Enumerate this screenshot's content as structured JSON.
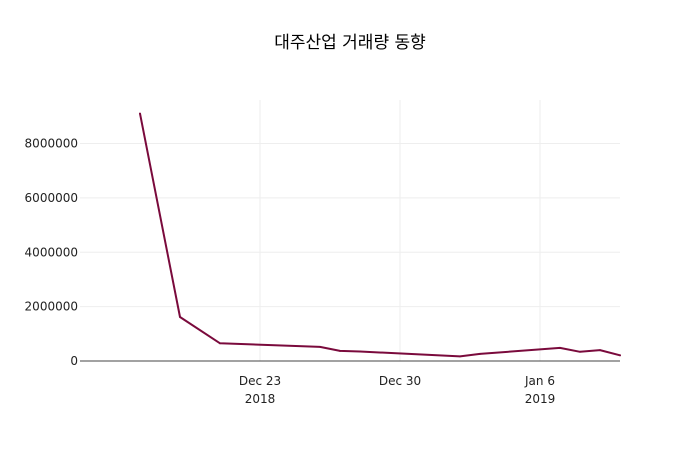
{
  "chart_data": {
    "type": "line",
    "title": "대주산업 거래량 동향",
    "xlabel": "",
    "ylabel": "",
    "colors": {
      "line": "#7a0a3c",
      "grid": "#eeeeee",
      "axis": "#444444",
      "text": "#222222"
    },
    "grid": true,
    "xlim": [
      "2018-12-14",
      "2019-01-10"
    ],
    "ylim": [
      0,
      9600000
    ],
    "x_ticks": [
      {
        "date": "2018-12-23",
        "label": "Dec 23",
        "sublabel": "2018"
      },
      {
        "date": "2018-12-30",
        "label": "Dec 30",
        "sublabel": ""
      },
      {
        "date": "2019-01-06",
        "label": "Jan 6",
        "sublabel": "2019"
      }
    ],
    "y_ticks": [
      {
        "value": 0,
        "label": "0"
      },
      {
        "value": 2000000,
        "label": "2000000"
      },
      {
        "value": 4000000,
        "label": "4000000"
      },
      {
        "value": 6000000,
        "label": "6000000"
      },
      {
        "value": 8000000,
        "label": "8000000"
      }
    ],
    "series": [
      {
        "x": [
          "2018-12-17",
          "2018-12-19",
          "2018-12-21",
          "2018-12-26",
          "2018-12-27",
          "2018-12-28",
          "2019-01-02",
          "2019-01-03",
          "2019-01-07",
          "2019-01-08",
          "2019-01-09",
          "2019-01-10"
        ],
        "values": [
          9100000,
          1620000,
          650000,
          520000,
          370000,
          350000,
          170000,
          260000,
          480000,
          340000,
          400000,
          210000
        ]
      }
    ]
  }
}
